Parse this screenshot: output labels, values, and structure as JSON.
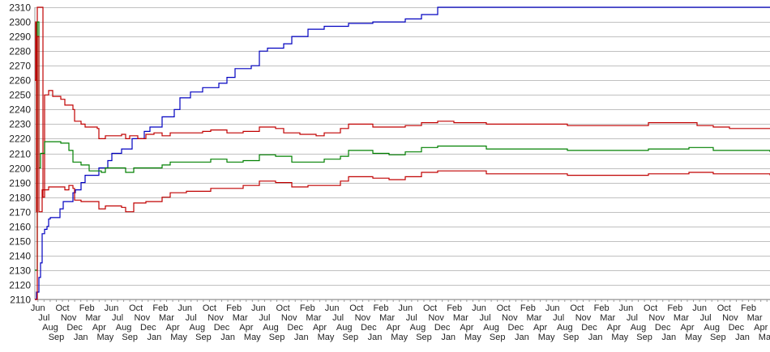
{
  "chart_data": {
    "type": "line",
    "title": "",
    "xlabel": "",
    "ylabel": "",
    "ylim": [
      2110,
      2310
    ],
    "y_ticks": [
      2110,
      2120,
      2130,
      2140,
      2150,
      2160,
      2170,
      2180,
      2190,
      2200,
      2210,
      2220,
      2230,
      2240,
      2250,
      2260,
      2270,
      2280,
      2290,
      2300,
      2310
    ],
    "xlim": [
      0,
      907
    ],
    "grid": "horizontal",
    "legend": "none",
    "x_tick_labels": [
      "Jun",
      "Jul",
      "Aug",
      "Sep",
      "Oct",
      "Nov",
      "Dec",
      "Jan",
      "Feb",
      "Mar",
      "Apr",
      "May",
      "Jun",
      "Jul",
      "Aug",
      "Sep",
      "Oct",
      "Nov",
      "Dec",
      "Jan",
      "Feb",
      "Mar",
      "Apr",
      "May",
      "Jun",
      "Jul",
      "Aug",
      "Sep",
      "Oct",
      "Nov",
      "Dec",
      "Jan",
      "Feb",
      "Mar",
      "Apr",
      "May",
      "Jun",
      "Jul",
      "Aug",
      "Sep",
      "Oct",
      "Nov",
      "Dec",
      "Jan",
      "Feb",
      "Mar",
      "Apr",
      "May",
      "Jun",
      "Jul",
      "Aug",
      "Sep",
      "Oct",
      "Nov",
      "Dec",
      "Jan",
      "Feb",
      "Mar",
      "Apr",
      "May",
      "Jun",
      "Jul",
      "Aug",
      "Sep",
      "Oct",
      "Nov",
      "Dec",
      "Jan",
      "Feb",
      "Mar",
      "Apr",
      "May",
      "Jun",
      "Jul",
      "Aug",
      "Sep",
      "Oct",
      "Nov",
      "Dec",
      "Jan",
      "Feb",
      "Mar",
      "Apr",
      "May",
      "Jun",
      "Jul",
      "Aug",
      "Sep",
      "Oct",
      "Nov",
      "Dec",
      "Jan",
      "Feb",
      "Mar",
      "Apr",
      "May",
      "Jun",
      "Jul",
      "Aug",
      "Sep",
      "Oct",
      "Nov",
      "Dec",
      "Jan",
      "Feb",
      "Mar",
      "Apr",
      "May",
      "Jun",
      "Jul",
      "Aug",
      "Sep",
      "Oct",
      "Nov",
      "Dec",
      "Jan",
      "Feb",
      "Mar",
      "Apr",
      "May"
    ],
    "series": [
      {
        "color": "#0000c0",
        "points": [
          [
            0,
            2110
          ],
          [
            2,
            2115
          ],
          [
            5,
            2125
          ],
          [
            7,
            2135
          ],
          [
            9,
            2155
          ],
          [
            12,
            2158
          ],
          [
            15,
            2160
          ],
          [
            17,
            2165
          ],
          [
            19,
            2166
          ],
          [
            30,
            2166
          ],
          [
            31,
            2172
          ],
          [
            35,
            2177
          ],
          [
            45,
            2177
          ],
          [
            47,
            2183
          ],
          [
            50,
            2185
          ],
          [
            55,
            2185
          ],
          [
            57,
            2190
          ],
          [
            62,
            2195
          ],
          [
            77,
            2195
          ],
          [
            79,
            2200
          ],
          [
            87,
            2200
          ],
          [
            90,
            2205
          ],
          [
            95,
            2210
          ],
          [
            104,
            2210
          ],
          [
            107,
            2213
          ],
          [
            114,
            2213
          ],
          [
            120,
            2220
          ],
          [
            132,
            2220
          ],
          [
            135,
            2225
          ],
          [
            142,
            2228
          ],
          [
            157,
            2235
          ],
          [
            172,
            2240
          ],
          [
            179,
            2248
          ],
          [
            192,
            2252
          ],
          [
            207,
            2255
          ],
          [
            227,
            2258
          ],
          [
            237,
            2262
          ],
          [
            247,
            2268
          ],
          [
            267,
            2270
          ],
          [
            277,
            2280
          ],
          [
            287,
            2282
          ],
          [
            307,
            2285
          ],
          [
            317,
            2290
          ],
          [
            337,
            2295
          ],
          [
            357,
            2297
          ],
          [
            387,
            2299
          ],
          [
            417,
            2300
          ],
          [
            457,
            2302
          ],
          [
            477,
            2305
          ],
          [
            497,
            2310
          ],
          [
            907,
            2310
          ]
        ]
      },
      {
        "color": "#c00000",
        "points": [
          [
            0,
            2260
          ],
          [
            1,
            2300
          ],
          [
            2,
            2170
          ],
          [
            3,
            2310
          ],
          [
            9,
            2310
          ],
          [
            10,
            2180
          ],
          [
            12,
            2250
          ],
          [
            17,
            2253
          ],
          [
            22,
            2249
          ],
          [
            32,
            2247
          ],
          [
            37,
            2243
          ],
          [
            47,
            2240
          ],
          [
            49,
            2232
          ],
          [
            57,
            2230
          ],
          [
            62,
            2228
          ],
          [
            77,
            2227
          ],
          [
            79,
            2220
          ],
          [
            87,
            2222
          ],
          [
            107,
            2223
          ],
          [
            112,
            2220
          ],
          [
            117,
            2222
          ],
          [
            127,
            2220
          ],
          [
            137,
            2223
          ],
          [
            147,
            2224
          ],
          [
            157,
            2222
          ],
          [
            167,
            2224
          ],
          [
            182,
            2224
          ],
          [
            207,
            2225
          ],
          [
            217,
            2226
          ],
          [
            237,
            2224
          ],
          [
            257,
            2225
          ],
          [
            277,
            2228
          ],
          [
            297,
            2227
          ],
          [
            307,
            2224
          ],
          [
            327,
            2223
          ],
          [
            347,
            2222
          ],
          [
            357,
            2224
          ],
          [
            377,
            2227
          ],
          [
            387,
            2230
          ],
          [
            417,
            2228
          ],
          [
            437,
            2228
          ],
          [
            457,
            2229
          ],
          [
            477,
            2231
          ],
          [
            497,
            2232
          ],
          [
            517,
            2231
          ],
          [
            557,
            2230
          ],
          [
            607,
            2230
          ],
          [
            657,
            2229
          ],
          [
            707,
            2229
          ],
          [
            757,
            2231
          ],
          [
            797,
            2231
          ],
          [
            817,
            2229
          ],
          [
            837,
            2228
          ],
          [
            857,
            2227
          ],
          [
            907,
            2227
          ]
        ]
      },
      {
        "color": "#008000",
        "points": [
          [
            0,
            2130
          ],
          [
            3,
            2300
          ],
          [
            5,
            2200
          ],
          [
            7,
            2210
          ],
          [
            12,
            2218
          ],
          [
            32,
            2217
          ],
          [
            42,
            2212
          ],
          [
            47,
            2204
          ],
          [
            57,
            2202
          ],
          [
            65,
            2202
          ],
          [
            67,
            2198
          ],
          [
            82,
            2197
          ],
          [
            87,
            2200
          ],
          [
            107,
            2200
          ],
          [
            112,
            2197
          ],
          [
            122,
            2200
          ],
          [
            137,
            2200
          ],
          [
            157,
            2202
          ],
          [
            167,
            2204
          ],
          [
            182,
            2204
          ],
          [
            217,
            2206
          ],
          [
            237,
            2204
          ],
          [
            257,
            2205
          ],
          [
            277,
            2209
          ],
          [
            297,
            2208
          ],
          [
            317,
            2204
          ],
          [
            337,
            2204
          ],
          [
            357,
            2206
          ],
          [
            377,
            2208
          ],
          [
            387,
            2212
          ],
          [
            417,
            2210
          ],
          [
            437,
            2209
          ],
          [
            457,
            2211
          ],
          [
            477,
            2214
          ],
          [
            497,
            2215
          ],
          [
            557,
            2213
          ],
          [
            657,
            2212
          ],
          [
            757,
            2213
          ],
          [
            807,
            2214
          ],
          [
            837,
            2212
          ],
          [
            907,
            2211
          ]
        ]
      },
      {
        "color": "#c00000",
        "points": [
          [
            0,
            2110
          ],
          [
            3,
            2290
          ],
          [
            5,
            2170
          ],
          [
            9,
            2185
          ],
          [
            17,
            2187
          ],
          [
            32,
            2187
          ],
          [
            37,
            2185
          ],
          [
            42,
            2188
          ],
          [
            47,
            2186
          ],
          [
            49,
            2178
          ],
          [
            57,
            2177
          ],
          [
            77,
            2177
          ],
          [
            79,
            2172
          ],
          [
            87,
            2174
          ],
          [
            107,
            2173
          ],
          [
            112,
            2170
          ],
          [
            122,
            2176
          ],
          [
            137,
            2177
          ],
          [
            157,
            2180
          ],
          [
            167,
            2183
          ],
          [
            187,
            2184
          ],
          [
            217,
            2186
          ],
          [
            237,
            2186
          ],
          [
            257,
            2188
          ],
          [
            277,
            2191
          ],
          [
            297,
            2190
          ],
          [
            317,
            2187
          ],
          [
            337,
            2188
          ],
          [
            357,
            2188
          ],
          [
            377,
            2191
          ],
          [
            387,
            2194
          ],
          [
            417,
            2193
          ],
          [
            437,
            2192
          ],
          [
            457,
            2194
          ],
          [
            477,
            2197
          ],
          [
            497,
            2198
          ],
          [
            557,
            2196
          ],
          [
            657,
            2195
          ],
          [
            707,
            2195
          ],
          [
            757,
            2196
          ],
          [
            807,
            2197
          ],
          [
            837,
            2196
          ],
          [
            907,
            2195
          ]
        ]
      }
    ]
  }
}
